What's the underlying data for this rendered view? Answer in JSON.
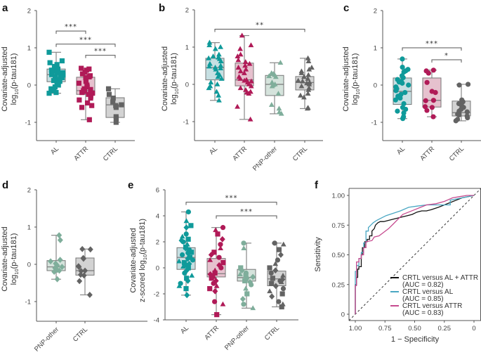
{
  "colors": {
    "AL": "#0f9a9a",
    "ATTR": "#b01a57",
    "PNP-other": "#7fae9b",
    "CTRL": "#636363",
    "AL_box": "#c6dfe2",
    "ATTR_box": "#e6c1ce",
    "PNP-other_box": "#d5e3dc",
    "CTRL_box": "#d3d3d3",
    "roc_all": "#111111",
    "roc_al": "#4aa7c3",
    "roc_attr": "#c64b8f"
  },
  "chart_data": [
    {
      "panel": "a",
      "type": "box",
      "marker": "square",
      "ylabel_line1": "Covariate-adjusted",
      "ylabel_line2": "log10(p-tau181)",
      "ylim": [
        -1.5,
        2
      ],
      "yticks": [
        "2",
        "1",
        "0",
        "-1"
      ],
      "ytick_values": [
        2,
        1,
        0,
        -1
      ],
      "categories": [
        "AL",
        "ATTR",
        "CTRL"
      ],
      "boxes": [
        {
          "group": "AL",
          "min": -0.22,
          "q1": 0.09,
          "median": 0.28,
          "q3": 0.43,
          "max": 0.88
        },
        {
          "group": "ATTR",
          "min": -0.93,
          "q1": -0.25,
          "median": -0.15,
          "q3": 0.21,
          "max": 0.45
        },
        {
          "group": "CTRL",
          "min": -1.0,
          "q1": -0.87,
          "median": -0.53,
          "q3": -0.34,
          "max": -0.1
        }
      ],
      "points": {
        "AL": [
          0.88,
          0.65,
          0.6,
          0.55,
          0.5,
          0.47,
          0.43,
          0.4,
          0.38,
          0.35,
          0.33,
          0.3,
          0.28,
          0.27,
          0.25,
          0.22,
          0.2,
          0.18,
          0.15,
          0.12,
          0.1,
          0.05,
          0.0,
          -0.05,
          -0.1,
          -0.15,
          -0.2,
          -0.22
        ],
        "ATTR": [
          0.45,
          0.43,
          0.4,
          0.35,
          0.3,
          0.25,
          0.22,
          0.2,
          0.15,
          0.1,
          0.05,
          0.0,
          -0.05,
          -0.1,
          -0.12,
          -0.15,
          -0.17,
          -0.2,
          -0.22,
          -0.25,
          -0.3,
          -0.35,
          -0.4,
          -0.48,
          -0.55,
          -0.6,
          -0.93
        ],
        "CTRL": [
          -0.1,
          -0.25,
          -0.35,
          -0.45,
          -0.53,
          -0.55,
          -0.6,
          -0.85,
          -0.9,
          -1.0
        ]
      },
      "significance": [
        {
          "from": "AL",
          "to": "ATTR",
          "label": "***",
          "y": 1.45
        },
        {
          "from": "AL",
          "to": "CTRL",
          "label": "***",
          "y": 1.1
        },
        {
          "from": "ATTR",
          "to": "CTRL",
          "label": "***",
          "y": 0.8
        }
      ]
    },
    {
      "panel": "b",
      "type": "box",
      "marker": "triangle",
      "ylabel_line1": "Covariate-adjusted",
      "ylabel_line2": "log10(p-tau181)",
      "ylim": [
        -1.5,
        2
      ],
      "yticks": [
        "2",
        "1",
        "0",
        "-1"
      ],
      "ytick_values": [
        2,
        1,
        0,
        -1
      ],
      "categories": [
        "AL",
        "ATTR",
        "PNP-other",
        "CTRL"
      ],
      "boxes": [
        {
          "group": "AL",
          "min": -0.43,
          "q1": 0.12,
          "median": 0.45,
          "q3": 0.7,
          "max": 1.12
        },
        {
          "group": "ATTR",
          "min": -0.94,
          "q1": -0.04,
          "median": 0.12,
          "q3": 0.57,
          "max": 1.31
        },
        {
          "group": "PNP-other",
          "min": -0.79,
          "q1": -0.3,
          "median": 0.0,
          "q3": 0.24,
          "max": 0.58
        },
        {
          "group": "CTRL",
          "min": -0.65,
          "q1": -0.15,
          "median": 0.05,
          "q3": 0.21,
          "max": 0.7
        }
      ],
      "points": {
        "AL": [
          1.12,
          1.05,
          1.0,
          0.95,
          0.8,
          0.75,
          0.72,
          0.7,
          0.68,
          0.62,
          0.55,
          0.5,
          0.48,
          0.45,
          0.43,
          0.4,
          0.3,
          0.25,
          0.2,
          0.15,
          0.05,
          0.0,
          -0.05,
          -0.1,
          -0.2,
          -0.3,
          -0.43
        ],
        "ATTR": [
          1.31,
          1.05,
          0.95,
          0.8,
          0.75,
          0.65,
          0.6,
          0.55,
          0.5,
          0.45,
          0.4,
          0.35,
          0.3,
          0.2,
          0.15,
          0.12,
          0.1,
          0.08,
          0.05,
          0.0,
          -0.05,
          -0.1,
          -0.15,
          -0.2,
          -0.22,
          -0.25,
          -0.6,
          -0.94
        ],
        "PNP-other": [
          0.58,
          0.3,
          0.28,
          0.25,
          0.22,
          0.2,
          0.05,
          0.0,
          -0.02,
          -0.05,
          -0.25,
          -0.55,
          -0.65,
          -0.75,
          -0.79
        ],
        "CTRL": [
          0.7,
          0.62,
          0.45,
          0.4,
          0.35,
          0.3,
          0.25,
          0.2,
          0.15,
          0.1,
          0.08,
          0.05,
          0.03,
          0.0,
          -0.05,
          -0.1,
          -0.15,
          -0.25,
          -0.3,
          -0.35,
          -0.63,
          -0.65
        ]
      },
      "significance": [
        {
          "from": "AL",
          "to": "CTRL",
          "label": "**",
          "y": 1.48
        }
      ]
    },
    {
      "panel": "c",
      "type": "box",
      "marker": "circle",
      "ylabel_line1": "Covariate-adjusted",
      "ylabel_line2": "log10(p-tau181)",
      "ylim": [
        -1.5,
        2
      ],
      "yticks": [
        "2",
        "1",
        "0",
        "-1"
      ],
      "ytick_values": [
        2,
        1,
        0,
        -1
      ],
      "categories": [
        "AL",
        "ATTR",
        "CTRL"
      ],
      "boxes": [
        {
          "group": "AL",
          "min": -0.9,
          "q1": -0.52,
          "median": -0.17,
          "q3": 0.19,
          "max": 0.7
        },
        {
          "group": "ATTR",
          "min": -0.85,
          "q1": -0.59,
          "median": -0.41,
          "q3": 0.19,
          "max": 0.4
        },
        {
          "group": "CTRL",
          "min": -0.96,
          "q1": -0.83,
          "median": -0.74,
          "q3": -0.43,
          "max": 0.02
        }
      ],
      "points": {
        "AL": [
          0.7,
          0.48,
          0.42,
          0.38,
          0.35,
          0.25,
          0.2,
          0.15,
          0.1,
          0.08,
          0.05,
          0.0,
          -0.05,
          -0.1,
          -0.15,
          -0.2,
          -0.25,
          -0.3,
          -0.35,
          -0.4,
          -0.5,
          -0.6,
          -0.65,
          -0.7,
          -0.75,
          -0.85,
          -0.9
        ],
        "ATTR": [
          0.4,
          0.38,
          0.32,
          0.07,
          -0.17,
          -0.2,
          -0.41,
          -0.42,
          -0.58,
          -0.6,
          -0.68,
          -0.85
        ],
        "CTRL": [
          0.02,
          0.0,
          -0.4,
          -0.45,
          -0.5,
          -0.55,
          -0.6,
          -0.65,
          -0.7,
          -0.72,
          -0.75,
          -0.78,
          -0.8,
          -0.83,
          -0.88,
          -0.92,
          -0.96
        ]
      },
      "significance": [
        {
          "from": "AL",
          "to": "CTRL",
          "label": "***",
          "y": 1.0
        },
        {
          "from": "ATTR",
          "to": "CTRL",
          "label": "*",
          "y": 0.68
        }
      ]
    },
    {
      "panel": "d",
      "type": "box",
      "marker": "diamond",
      "ylabel_line1": "Covariate-adjusted",
      "ylabel_line2": "log10(p-tau181)",
      "ylim": [
        -1.5,
        2
      ],
      "yticks": [
        "2",
        "1",
        "0",
        "-1"
      ],
      "ytick_values": [
        2,
        1,
        0,
        -1
      ],
      "categories": [
        "PNP-other",
        "CTRL"
      ],
      "boxes": [
        {
          "group": "PNP-other",
          "min": -0.4,
          "q1": -0.17,
          "median": -0.07,
          "q3": 0.1,
          "max": 0.78
        },
        {
          "group": "CTRL",
          "min": -0.82,
          "q1": -0.29,
          "median": -0.17,
          "q3": 0.17,
          "max": 0.41
        }
      ],
      "points": {
        "PNP-other": [
          0.78,
          0.65,
          0.12,
          0.08,
          0.02,
          -0.03,
          -0.07,
          -0.1,
          -0.15,
          -0.17,
          -0.2,
          -0.4
        ],
        "CTRL": [
          0.41,
          0.4,
          0.17,
          0.15,
          -0.05,
          -0.07,
          -0.17,
          -0.18,
          -0.28,
          -0.3,
          -0.45,
          -0.82
        ]
      },
      "significance": []
    },
    {
      "panel": "e",
      "type": "box",
      "marker": "mixed",
      "ylabel_line1": "Covariate-adjusted",
      "ylabel_line2": "z-scored log10(p-tau181)",
      "ylim": [
        -4,
        6
      ],
      "yticks": [
        "6",
        "4",
        "2",
        "0",
        "-2",
        "-4"
      ],
      "ytick_values": [
        6,
        4,
        2,
        0,
        -2,
        -4
      ],
      "categories": [
        "AL",
        "ATTR",
        "PNP-other",
        "CTRL"
      ],
      "boxes": [
        {
          "group": "AL",
          "min": -2.1,
          "q1": -0.12,
          "median": 0.8,
          "q3": 1.55,
          "max": 4.3
        },
        {
          "group": "ATTR",
          "min": -3.6,
          "q1": -0.7,
          "median": -0.45,
          "q3": 0.72,
          "max": 3.1
        },
        {
          "group": "PNP-other",
          "min": -3.1,
          "q1": -1.02,
          "median": -0.75,
          "q3": -0.12,
          "max": 1.9
        },
        {
          "group": "CTRL",
          "min": -3.0,
          "q1": -1.38,
          "median": -0.85,
          "q3": -0.25,
          "max": 1.9
        }
      ],
      "points": {
        "AL": [
          4.3,
          3.6,
          3.25,
          3.1,
          2.6,
          2.4,
          2.2,
          2.1,
          2.0,
          1.8,
          1.6,
          1.5,
          1.4,
          1.3,
          1.2,
          1.1,
          1.0,
          0.9,
          0.8,
          0.7,
          0.6,
          0.5,
          0.4,
          0.3,
          0.2,
          0.1,
          0.0,
          -0.2,
          -0.4,
          -0.6,
          -0.8,
          -1.0,
          -1.2,
          -1.4,
          -1.6,
          -2.1
        ],
        "ATTR": [
          3.1,
          2.9,
          2.6,
          2.2,
          1.8,
          1.5,
          1.2,
          1.0,
          0.8,
          0.6,
          0.4,
          0.2,
          0.0,
          -0.2,
          -0.4,
          -0.5,
          -0.6,
          -0.7,
          -0.8,
          -1.0,
          -1.2,
          -1.4,
          -1.6,
          -1.8,
          -2.6,
          -2.8,
          -3.6
        ],
        "PNP-other": [
          1.9,
          1.5,
          0.0,
          -0.2,
          -0.4,
          -0.5,
          -0.6,
          -0.7,
          -0.8,
          -0.9,
          -1.0,
          -1.1,
          -1.3,
          -1.6,
          -2.0,
          -2.4,
          -2.8,
          -3.1
        ],
        "CTRL": [
          1.9,
          1.8,
          1.4,
          1.0,
          0.6,
          0.3,
          0.0,
          -0.2,
          -0.4,
          -0.6,
          -0.8,
          -0.9,
          -1.0,
          -1.1,
          -1.2,
          -1.4,
          -1.6,
          -1.8,
          -2.0,
          -2.2,
          -2.6,
          -2.8,
          -3.0
        ]
      },
      "significance": [
        {
          "from": "AL",
          "to": "CTRL",
          "label": "***",
          "y": 5.05
        },
        {
          "from": "ATTR",
          "to": "CTRL",
          "label": "***",
          "y": 4.0
        }
      ]
    },
    {
      "panel": "f",
      "type": "line",
      "title": "",
      "xlabel": "1 − Specificity",
      "ylabel": "Sensitivity",
      "xlim": [
        1.0,
        0.0
      ],
      "ylim": [
        0.0,
        1.0
      ],
      "xticks": [
        "1.00",
        "0.75",
        "0.50",
        "0.25",
        "0"
      ],
      "xtick_values": [
        1.0,
        0.75,
        0.5,
        0.25,
        0.0
      ],
      "yticks": [
        "1.00",
        "0.75",
        "0.50",
        "0.25",
        "0"
      ],
      "ytick_values": [
        1.0,
        0.75,
        0.5,
        0.25,
        0.0
      ],
      "reference_line": "diagonal dashed",
      "legend_position": "bottom-right",
      "series": [
        {
          "name": "CRTL versus AL + ATTR",
          "auc_label": "(AUC = 0.82)",
          "color_key": "roc_all",
          "x": [
            1.0,
            1.0,
            0.99,
            0.99,
            0.98,
            0.98,
            0.97,
            0.97,
            0.95,
            0.95,
            0.94,
            0.94,
            0.92,
            0.92,
            0.9,
            0.9,
            0.88,
            0.88,
            0.86,
            0.86,
            0.84,
            0.83,
            0.81,
            0.79,
            0.76,
            0.72,
            0.68,
            0.64,
            0.6,
            0.56,
            0.52,
            0.48,
            0.44,
            0.4,
            0.36,
            0.3,
            0.25,
            0.2,
            0.15,
            0.1,
            0.05,
            0.0
          ],
          "y": [
            0.0,
            0.25,
            0.25,
            0.31,
            0.31,
            0.38,
            0.38,
            0.4,
            0.4,
            0.5,
            0.5,
            0.56,
            0.56,
            0.61,
            0.61,
            0.63,
            0.63,
            0.66,
            0.66,
            0.7,
            0.72,
            0.75,
            0.77,
            0.78,
            0.78,
            0.79,
            0.8,
            0.81,
            0.82,
            0.83,
            0.84,
            0.86,
            0.87,
            0.87,
            0.88,
            0.9,
            0.92,
            0.94,
            0.96,
            0.98,
            0.99,
            1.0
          ]
        },
        {
          "name": "CRTL versus AL",
          "auc_label": "(AUC = 0.85)",
          "color_key": "roc_al",
          "x": [
            1.0,
            1.0,
            0.99,
            0.99,
            0.97,
            0.97,
            0.95,
            0.95,
            0.93,
            0.93,
            0.91,
            0.91,
            0.89,
            0.89,
            0.87,
            0.85,
            0.82,
            0.78,
            0.74,
            0.68,
            0.62,
            0.55,
            0.48,
            0.4,
            0.3,
            0.2,
            0.2,
            0.15,
            0.1,
            0.05,
            0.0
          ],
          "y": [
            0.0,
            0.36,
            0.36,
            0.41,
            0.41,
            0.47,
            0.47,
            0.52,
            0.52,
            0.6,
            0.6,
            0.7,
            0.7,
            0.73,
            0.75,
            0.77,
            0.79,
            0.81,
            0.83,
            0.85,
            0.87,
            0.9,
            0.91,
            0.92,
            0.92,
            0.92,
            0.96,
            0.97,
            0.98,
            0.99,
            1.0
          ]
        },
        {
          "name": "CRTL versus ATTR",
          "auc_label": "(AUC = 0.83)",
          "color_key": "roc_attr",
          "x": [
            1.0,
            1.0,
            0.99,
            0.99,
            0.97,
            0.97,
            0.95,
            0.95,
            0.93,
            0.93,
            0.91,
            0.91,
            0.86,
            0.84,
            0.8,
            0.76,
            0.72,
            0.68,
            0.64,
            0.6,
            0.55,
            0.5,
            0.45,
            0.4,
            0.32,
            0.25,
            0.18,
            0.12,
            0.06,
            0.0
          ],
          "y": [
            0.0,
            0.24,
            0.24,
            0.44,
            0.44,
            0.47,
            0.47,
            0.5,
            0.5,
            0.56,
            0.56,
            0.61,
            0.62,
            0.65,
            0.66,
            0.69,
            0.72,
            0.76,
            0.8,
            0.84,
            0.86,
            0.88,
            0.9,
            0.92,
            0.93,
            0.95,
            0.98,
            0.99,
            1.0,
            1.0
          ]
        }
      ]
    }
  ]
}
